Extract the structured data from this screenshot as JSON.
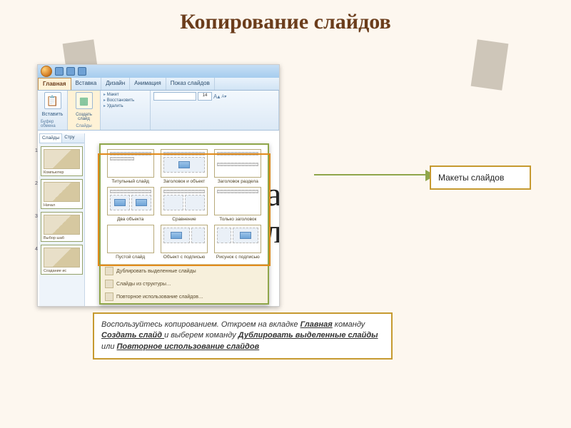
{
  "title": "Копирование слайдов",
  "callout_label": "Макеты слайдов",
  "ribbon": {
    "tabs": [
      "Главная",
      "Вставка",
      "Дизайн",
      "Анимация",
      "Показ слайдов"
    ],
    "active_tab": "Главная",
    "paste_label": "Вставить",
    "paste_group": "Буфер обмена",
    "newslide_label": "Создать слайд",
    "newslide_group": "Слайды",
    "layout_btn": "Макет",
    "reset_btn": "Восстановить",
    "delete_btn": "Удалить",
    "font_name": "",
    "font_size": "14"
  },
  "leftpane": {
    "tab1": "Слайды",
    "tab2": "Стру",
    "thumbs": [
      {
        "n": "1",
        "label": "Компьютер"
      },
      {
        "n": "2",
        "label": "Начал"
      },
      {
        "n": "3",
        "label": "Выбор шаб"
      },
      {
        "n": "4",
        "label": "Создание ис"
      }
    ]
  },
  "layouts": [
    "Титульный слайд",
    "Заголовок и объект",
    "Заголовок раздела",
    "Два объекта",
    "Сравнение",
    "Только заголовок",
    "Пустой слайд",
    "Объект с подписью",
    "Рисунок с подписью"
  ],
  "gallery_menu": [
    "Дублировать выделенные слайды",
    "Слайды из структуры…",
    "Повторное использование слайдов…"
  ],
  "bg_letters": {
    "l1": "а",
    "l2": "л"
  },
  "instruction": {
    "t1": "Воспользуйтесь копированием. Откроем на вкладке ",
    "u1": "Главная",
    "t2": " команду ",
    "u2": "Создать слайд ",
    "t3": "и выберем команду ",
    "u3": "Дублировать выделенные слайды",
    "t4": " или ",
    "u4": "Повторное использование слайдов"
  },
  "colors": {
    "accent_border": "#c69a30",
    "highlight_border": "#e08a1a",
    "arrow": "#8fa64a",
    "background": "#fdf7ef",
    "title_color": "#6b3d1c"
  }
}
